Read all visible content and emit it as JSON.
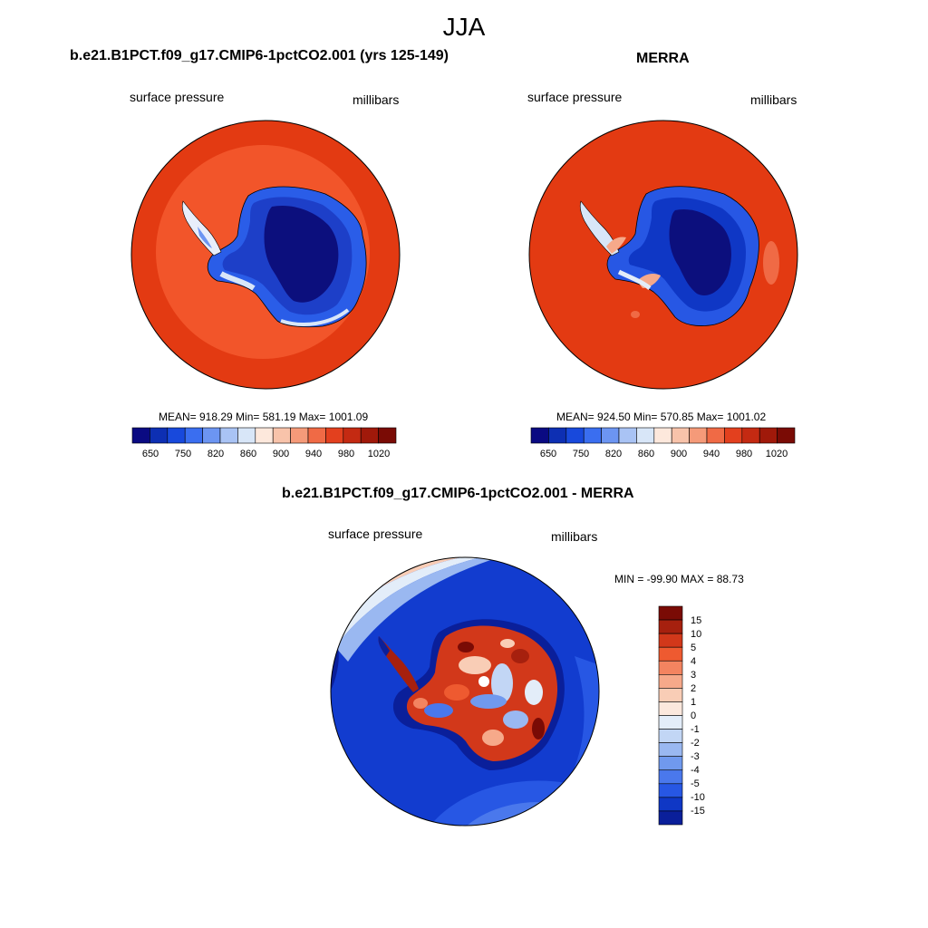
{
  "figure": {
    "season": "JJA"
  },
  "panels": {
    "model": {
      "title": "b.e21.B1PCT.f09_g17.CMIP6-1pctCO2.001 (yrs 125-149)",
      "left_label": "surface pressure",
      "right_label": "millibars",
      "stats": "MEAN= 918.29  Min= 581.19  Max= 1001.09"
    },
    "obs": {
      "title": "MERRA",
      "left_label": "surface pressure",
      "right_label": "millibars",
      "stats": "MEAN= 924.50  Min= 570.85  Max= 1001.02"
    },
    "diff": {
      "title": "b.e21.B1PCT.f09_g17.CMIP6-1pctCO2.001 - MERRA",
      "left_label": "surface pressure",
      "right_label": "millibars",
      "stats": "MIN = -99.90 MAX =  88.73"
    }
  },
  "colorbars": {
    "horizontal": {
      "tick_labels": [
        "650",
        "750",
        "820",
        "860",
        "900",
        "940",
        "980",
        "1020"
      ],
      "colors": [
        "#0a0a82",
        "#0d2fb3",
        "#1849dc",
        "#3a6ef0",
        "#6c95f2",
        "#a9c3f4",
        "#d8e6f8",
        "#fde8dc",
        "#f8c3aa",
        "#f59a79",
        "#f06a45",
        "#e3401e",
        "#c42a12",
        "#a0190a",
        "#7a0b05"
      ]
    },
    "vertical": {
      "tick_labels": [
        "15",
        "10",
        "5",
        "4",
        "3",
        "2",
        "1",
        "0",
        "-1",
        "-2",
        "-3",
        "-4",
        "-5",
        "-10",
        "-15"
      ],
      "colors": [
        "#7a0b05",
        "#a6200e",
        "#d2381a",
        "#ee5a30",
        "#f38460",
        "#f6a98a",
        "#f9cdb6",
        "#fbe8dd",
        "#e3edf9",
        "#c2d6f5",
        "#9ab8f1",
        "#7099ee",
        "#4a78ec",
        "#2757e4",
        "#0f37c5",
        "#0a1f9a"
      ]
    }
  },
  "colors": {
    "ocean_model": "#f2552a",
    "ocean_obs": "#e33a12",
    "ice_dark": "#0c0f7d",
    "diff_ocean": "#123ccf"
  }
}
